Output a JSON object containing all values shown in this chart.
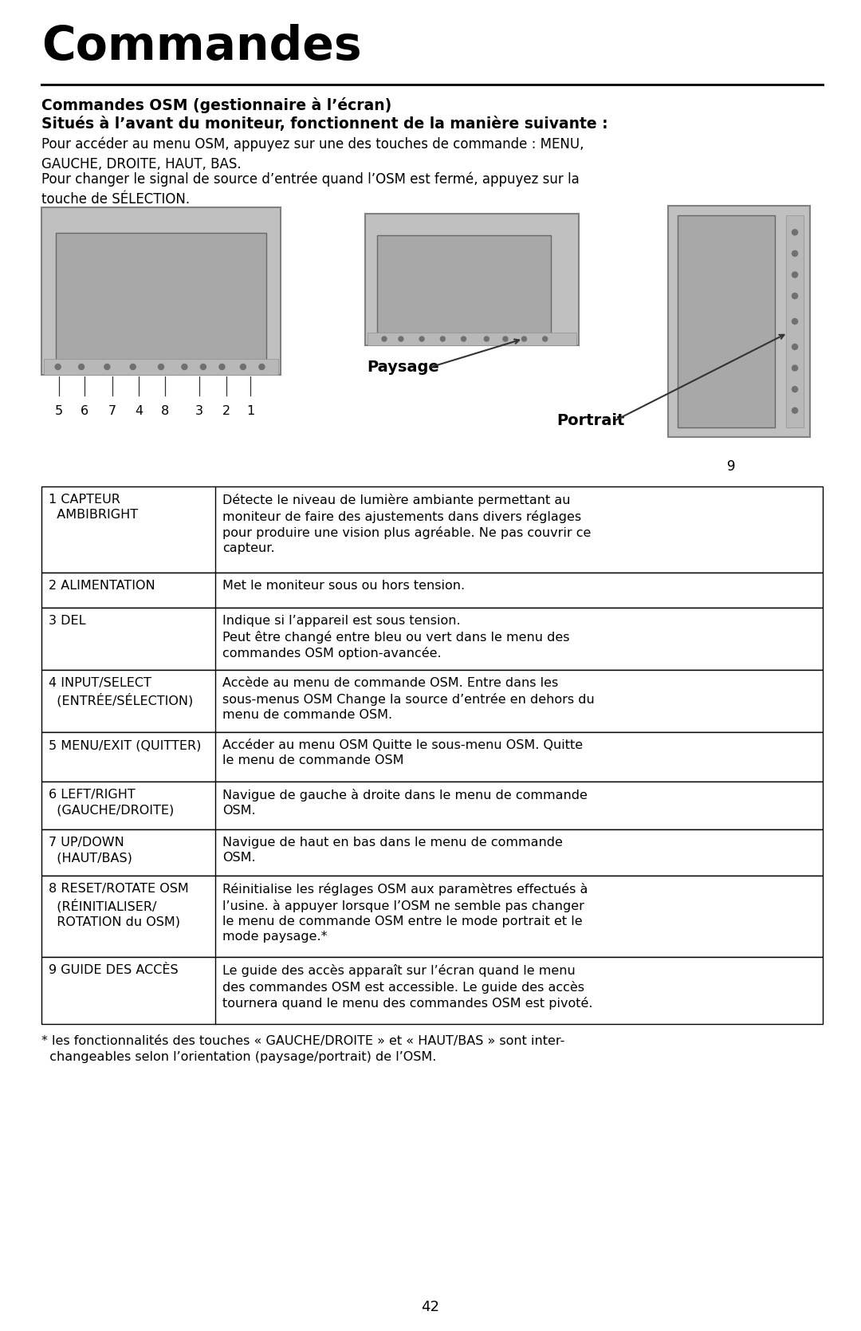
{
  "title": "Commandes",
  "subtitle_line1": "Commandes OSM (gestionnaire à l’écran)",
  "subtitle_line2": "Situés à l’avant du moniteur, fonctionnent de la manière suivante :",
  "para1": "Pour accéder au menu OSM, appuyez sur une des touches de commande : MENU,\nGAUCHE, DROITE, HAUT, BAS.",
  "para2": "Pour changer le signal de source d’entrée quand l’OSM est fermé, appuyez sur la\ntouche de SÉLECTION.",
  "label_paysage": "Paysage",
  "label_portrait": "Portrait",
  "label_9": "9",
  "numbers_landscape": [
    "5",
    "6",
    "7",
    "4",
    "8",
    "3",
    "2",
    "1"
  ],
  "table_rows": [
    {
      "label": "1 CAPTEUR\n  AMBIBRIGHT",
      "desc": "Détecte le niveau de lumière ambiante permettant au\nmoniteur de faire des ajustements dans divers réglages\npour produire une vision plus agréable. Ne pas couvrir ce\ncapteur."
    },
    {
      "label": "2 ALIMENTATION",
      "desc": "Met le moniteur sous ou hors tension."
    },
    {
      "label": "3 DEL",
      "desc": "Indique si l’appareil est sous tension.\nPeut être changé entre bleu ou vert dans le menu des\ncommandes OSM option-avancée."
    },
    {
      "label": "4 INPUT/SELECT\n  (ENTRÉE/SÉLECTION)",
      "desc": "Accède au menu de commande OSM. Entre dans les\nsous-menus OSM Change la source d’entrée en dehors du\nmenu de commande OSM."
    },
    {
      "label": "5 MENU/EXIT (QUITTER)",
      "desc": "Accéder au menu OSM Quitte le sous-menu OSM. Quitte\nle menu de commande OSM"
    },
    {
      "label": "6 LEFT/RIGHT\n  (GAUCHE/DROITE)",
      "desc": "Navigue de gauche à droite dans le menu de commande\nOSM."
    },
    {
      "label": "7 UP/DOWN\n  (HAUT/BAS)",
      "desc": "Navigue de haut en bas dans le menu de commande\nOSM."
    },
    {
      "label": "8 RESET/ROTATE OSM\n  (RÉINITIALISER/\n  ROTATION du OSM)",
      "desc": "Réinitialise les réglages OSM aux paramètres effectués à\nl’usine. à appuyer lorsque l’OSM ne semble pas changer\nle menu de commande OSM entre le mode portrait et le\nmode paysage.*"
    },
    {
      "label": "9 GUIDE DES ACCÈS",
      "desc": "Le guide des accès apparaît sur l’écran quand le menu\ndes commandes OSM est accessible. Le guide des accès\ntournera quand le menu des commandes OSM est pivoté."
    }
  ],
  "footnote_line1": "* les fonctionnalités des touches « GAUCHE/DROITE » et « HAUT/BAS » sont inter-",
  "footnote_line2": "  changeables selon l’orientation (paysage/portrait) de l’OSM.",
  "page_number": "42",
  "bg_color": "#ffffff",
  "text_color": "#000000",
  "monitor_bg": "#c0c0c0",
  "monitor_screen": "#a8a8a8",
  "monitor_border": "#808080",
  "table_border_color": "#000000"
}
